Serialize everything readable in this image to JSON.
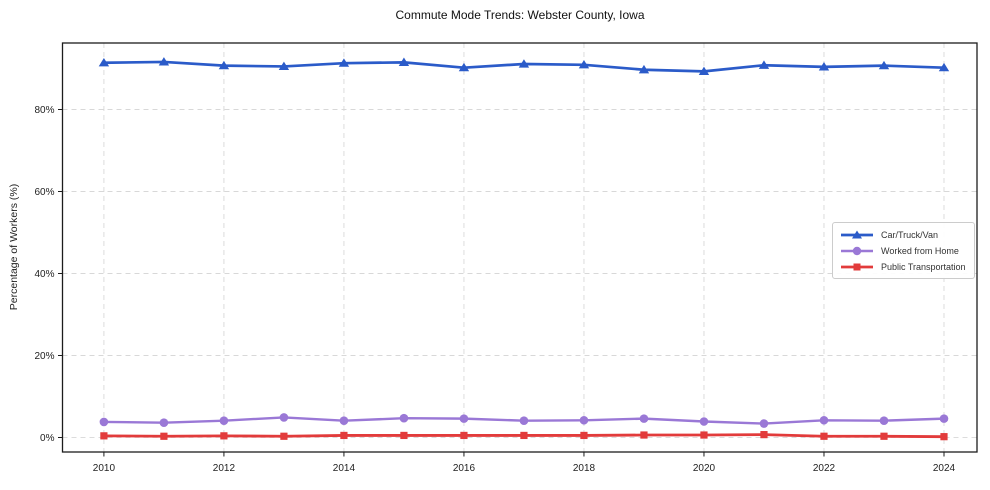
{
  "chart_data": {
    "type": "line",
    "title": "Commute Mode Trends: Webster County, Iowa",
    "ylabel": "Percentage of Workers (%)",
    "xlabel": "",
    "x": [
      2010,
      2011,
      2012,
      2013,
      2014,
      2015,
      2016,
      2017,
      2018,
      2019,
      2020,
      2021,
      2022,
      2023,
      2024
    ],
    "series": [
      {
        "name": "Car/Truck/Van",
        "color": "#2b5bc9",
        "marker": "triangle",
        "line_width": 2.7,
        "values": [
          91.4,
          91.6,
          90.7,
          90.5,
          91.3,
          91.5,
          90.2,
          91.1,
          90.9,
          89.7,
          89.3,
          90.8,
          90.4,
          90.7,
          90.2
        ]
      },
      {
        "name": "Worked from Home",
        "color": "#9a78d6",
        "marker": "circle",
        "line_width": 2.4,
        "values": [
          3.8,
          3.6,
          4.1,
          4.9,
          4.1,
          4.7,
          4.6,
          4.1,
          4.2,
          4.6,
          3.9,
          3.4,
          4.2,
          4.1,
          4.6
        ]
      },
      {
        "name": "Public Transportation",
        "color": "#e23b3b",
        "marker": "square",
        "line_width": 2.8,
        "values": [
          0.4,
          0.3,
          0.4,
          0.3,
          0.5,
          0.5,
          0.5,
          0.5,
          0.5,
          0.6,
          0.6,
          0.7,
          0.3,
          0.3,
          0.2
        ]
      }
    ],
    "xticks": [
      2010,
      2012,
      2014,
      2016,
      2018,
      2020,
      2022,
      2024
    ],
    "xtick_labels": [
      "2010",
      "2012",
      "2014",
      "2016",
      "2018",
      "2020",
      "2022",
      "2024"
    ],
    "yticks": [
      0,
      20,
      40,
      60,
      80
    ],
    "ytick_labels": [
      "0%",
      "20%",
      "40%",
      "60%",
      "80%"
    ],
    "xlim": [
      2009.31,
      2024.55
    ],
    "ylim": [
      -3.54,
      96.22
    ],
    "grid": true,
    "grid_style": "dashed",
    "legend": {
      "position": "center-right",
      "entries": [
        "Car/Truck/Van",
        "Worked from Home",
        "Public Transportation"
      ]
    }
  },
  "colors": {
    "background": "#ffffff",
    "grid": "#d8d8d8",
    "spine": "#1c1c1c",
    "tick_label": "#222222",
    "title": "#111111",
    "legend_border": "#cccccc"
  }
}
